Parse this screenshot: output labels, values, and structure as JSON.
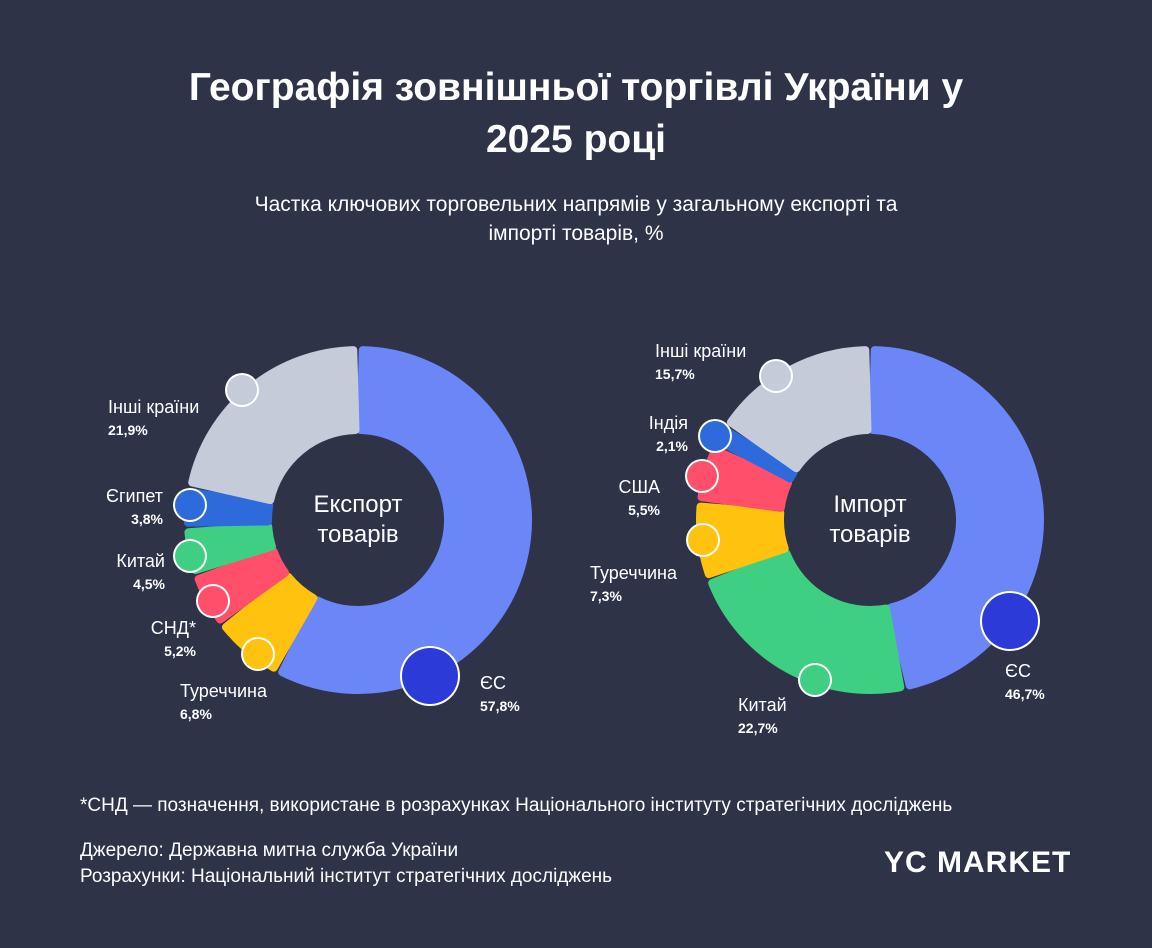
{
  "title": "Географія зовнішньої торгівлі України у 2025 році",
  "subtitle": "Частка ключових торговельних напрямів у загальному експорті та імпорті товарів, %",
  "footnote": "*СНД — позначення, використане в розрахунках Національного інституту стратегічних досліджень",
  "source": "Джерело: Державна митна служба України",
  "calculations": "Розрахунки: Національний інститут стратегічних досліджень",
  "logo": "YC MARKET",
  "chart_data": [
    {
      "type": "donut",
      "center_label": "Експорт товарів",
      "categories": [
        "ЄС",
        "Туреччина",
        "СНД*",
        "Китай",
        "Єгипет",
        "Інші країни"
      ],
      "values": [
        57.8,
        6.8,
        5.2,
        4.5,
        3.8,
        21.9
      ],
      "value_labels": [
        "57,8%",
        "6,8%",
        "5,2%",
        "4,5%",
        "3,8%",
        "21,9%"
      ],
      "colors": [
        "#6b86f7",
        "#ffc20e",
        "#ff4f6b",
        "#3ecf82",
        "#2d6bdc",
        "#c5cbd9"
      ]
    },
    {
      "type": "donut",
      "center_label": "Імпорт товарів",
      "categories": [
        "ЄС",
        "Китай",
        "Туреччина",
        "США",
        "Індія",
        "Інші країни"
      ],
      "values": [
        46.7,
        22.7,
        7.3,
        5.5,
        2.1,
        15.7
      ],
      "value_labels": [
        "46,7%",
        "22,7%",
        "7,3%",
        "5,5%",
        "2,1%",
        "15,7%"
      ],
      "colors": [
        "#6b86f7",
        "#3ecf82",
        "#ffc20e",
        "#ff4f6b",
        "#2d6bdc",
        "#c5cbd9"
      ]
    }
  ]
}
